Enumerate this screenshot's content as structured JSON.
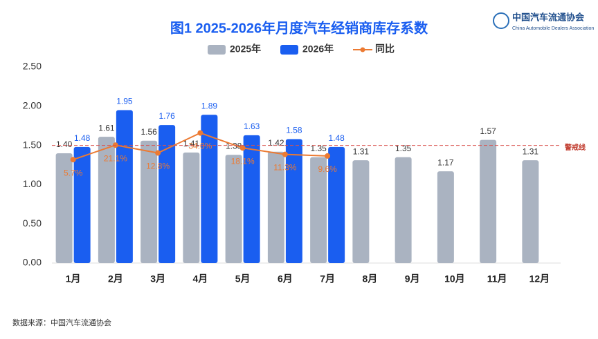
{
  "chart_data": {
    "type": "bar",
    "title": "图1  2025-2026年月度汽车经销商库存系数",
    "logo_title": "中国汽车流通协会",
    "logo_subtitle": "China Automobile Dealers Association",
    "source": "数据来源：中国汽车流通协会",
    "categories": [
      "1月",
      "2月",
      "3月",
      "4月",
      "5月",
      "6月",
      "7月",
      "8月",
      "9月",
      "10月",
      "11月",
      "12月"
    ],
    "series": [
      {
        "name": "2025年",
        "color": "#aab3c1",
        "values": [
          1.4,
          1.61,
          1.56,
          1.41,
          1.38,
          1.42,
          1.35,
          1.31,
          1.35,
          1.17,
          1.57,
          1.31
        ],
        "value_labels": [
          "1.40",
          "1.61",
          "1.56",
          "1.41",
          "1.38",
          "1.42",
          "1.35",
          "1.31",
          "1.35",
          "1.17",
          "1.57",
          "1.31"
        ]
      },
      {
        "name": "2026年",
        "color": "#1a5ef0",
        "values": [
          1.48,
          1.95,
          1.76,
          1.89,
          1.63,
          1.58,
          1.48,
          null,
          null,
          null,
          null,
          null
        ],
        "value_labels": [
          "1.48",
          "1.95",
          "1.76",
          "1.89",
          "1.63",
          "1.58",
          "1.48",
          null,
          null,
          null,
          null,
          null
        ]
      },
      {
        "name": "同比",
        "color": "#ec7a32",
        "type": "line",
        "axis": "y2",
        "values": [
          5.7,
          21.1,
          12.8,
          34.0,
          18.1,
          11.3,
          9.6,
          null,
          null,
          null,
          null,
          null
        ],
        "value_labels": [
          "5.7%",
          "21.1%",
          "12.8%",
          "34.0%",
          "18.1%",
          "11.3%",
          "9.6%",
          null,
          null,
          null,
          null,
          null
        ]
      }
    ],
    "ylim": [
      0,
      2.5
    ],
    "yticks": [
      {
        "value": 0,
        "label": "0.00"
      },
      {
        "value": 0.5,
        "label": "0.50"
      },
      {
        "value": 1,
        "label": "1.00"
      },
      {
        "value": 1.5,
        "label": "1.50"
      },
      {
        "value": 2,
        "label": "2.00"
      },
      {
        "value": 2.5,
        "label": "2.50"
      }
    ],
    "y2lim": [
      -104,
      104
    ],
    "reference_line": {
      "value": 1.5,
      "label": "警戒线",
      "color": "#d9534f"
    }
  }
}
